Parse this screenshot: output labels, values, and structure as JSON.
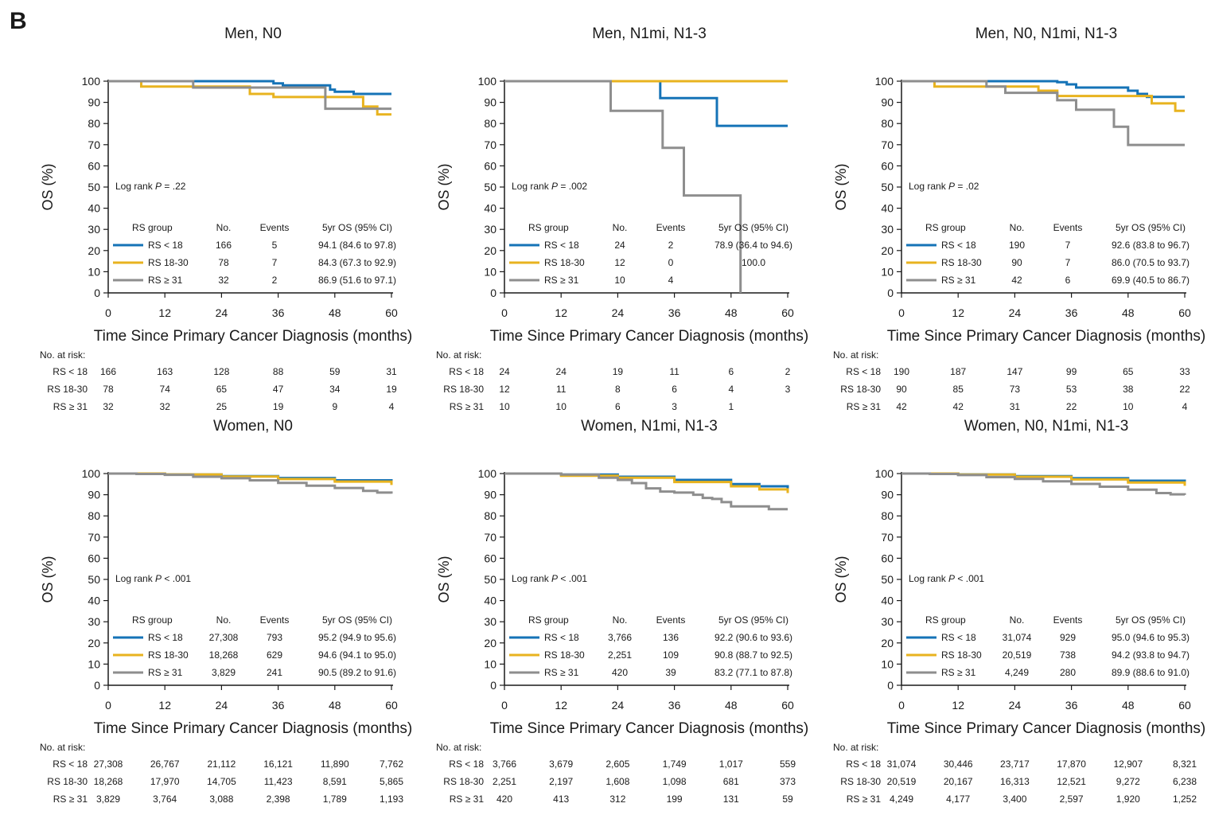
{
  "figure": {
    "panel_label": "B"
  },
  "colors": {
    "rs_lt18": "#1573b7",
    "rs_18_30": "#e8b31f",
    "rs_ge31": "#8e8e8e",
    "axis": "#1a1a1a"
  },
  "risk_header": "No. at risk:",
  "table_headers": {
    "group": "RS group",
    "no": "No.",
    "events": "Events",
    "os": "5yr OS (95% CI)"
  },
  "chart_data": [
    {
      "type": "line",
      "title": "Men, N0",
      "xlabel": "Time Since Primary Cancer Diagnosis (months)",
      "ylabel": "OS (%)",
      "xlim": [
        0,
        60
      ],
      "ylim": [
        0,
        100
      ],
      "xticks": [
        0,
        12,
        24,
        36,
        48,
        60
      ],
      "yticks": [
        0,
        10,
        20,
        30,
        40,
        50,
        60,
        70,
        80,
        90,
        100
      ],
      "logrank": {
        "prefix": "Log rank ",
        "p": "P",
        "value": " = .22"
      },
      "series": [
        {
          "name": "RS < 18",
          "no": "166",
          "events": "5",
          "os": "94.1 (84.6 to 97.8)",
          "x": [
            0,
            34,
            35,
            37,
            44,
            47,
            48,
            52,
            60
          ],
          "y": [
            100,
            100,
            99,
            98,
            98,
            96,
            95,
            94,
            94
          ],
          "at_risk": [
            "166",
            "163",
            "128",
            "88",
            "59",
            "31"
          ]
        },
        {
          "name": "RS 18-30",
          "no": "78",
          "events": "7",
          "os": "84.3 (67.3 to 92.9)",
          "x": [
            0,
            6,
            7,
            27,
            30,
            35,
            48,
            54,
            57,
            60
          ],
          "y": [
            100,
            100,
            97.5,
            97.5,
            94,
            92.5,
            92.5,
            88,
            84.3,
            84.3
          ],
          "at_risk": [
            "78",
            "74",
            "65",
            "47",
            "34",
            "19"
          ]
        },
        {
          "name": "RS ≥ 31",
          "no": "32",
          "events": "2",
          "os": "86.9 (51.6 to 97.1)",
          "x": [
            0,
            17,
            18,
            45,
            46,
            60
          ],
          "y": [
            100,
            100,
            97,
            97,
            87,
            87
          ],
          "at_risk": [
            "32",
            "32",
            "25",
            "19",
            "9",
            "4"
          ]
        }
      ]
    },
    {
      "type": "line",
      "title": "Men, N1mi, N1-3",
      "xlabel": "Time Since Primary Cancer Diagnosis (months)",
      "ylabel": "OS (%)",
      "xlim": [
        0,
        60
      ],
      "ylim": [
        0,
        100
      ],
      "xticks": [
        0,
        12,
        24,
        36,
        48,
        60
      ],
      "yticks": [
        0,
        10,
        20,
        30,
        40,
        50,
        60,
        70,
        80,
        90,
        100
      ],
      "logrank": {
        "prefix": "Log rank ",
        "p": "P",
        "value": " = .002"
      },
      "series": [
        {
          "name": "RS < 18",
          "no": "24",
          "events": "2",
          "os": "78.9 (36.4 to 94.6)",
          "x": [
            0,
            32,
            33,
            44,
            45,
            60
          ],
          "y": [
            100,
            100,
            92,
            92,
            78.9,
            78.9
          ],
          "at_risk": [
            "24",
            "24",
            "19",
            "11",
            "6",
            "2"
          ]
        },
        {
          "name": "RS 18-30",
          "no": "12",
          "events": "0",
          "os": "100.0",
          "x": [
            0,
            60
          ],
          "y": [
            100,
            100
          ],
          "at_risk": [
            "12",
            "11",
            "8",
            "6",
            "4",
            "3"
          ]
        },
        {
          "name": "RS ≥ 31",
          "no": "10",
          "events": "4",
          "os": "",
          "x": [
            0,
            22,
            22.5,
            33,
            33.5,
            37,
            38,
            49,
            50
          ],
          "y": [
            100,
            100,
            86,
            86,
            68.5,
            68.5,
            46,
            46,
            0
          ],
          "at_risk": [
            "10",
            "10",
            "6",
            "3",
            "1",
            ""
          ]
        }
      ]
    },
    {
      "type": "line",
      "title": "Men, N0, N1mi, N1-3",
      "xlabel": "Time Since Primary Cancer Diagnosis (months)",
      "ylabel": "OS (%)",
      "xlim": [
        0,
        60
      ],
      "ylim": [
        0,
        100
      ],
      "xticks": [
        0,
        12,
        24,
        36,
        48,
        60
      ],
      "yticks": [
        0,
        10,
        20,
        30,
        40,
        50,
        60,
        70,
        80,
        90,
        100
      ],
      "logrank": {
        "prefix": "Log rank ",
        "p": "P",
        "value": " = .02"
      },
      "series": [
        {
          "name": "RS < 18",
          "no": "190",
          "events": "7",
          "os": "92.6 (83.8 to 96.7)",
          "x": [
            0,
            32,
            33,
            35,
            37,
            44,
            48,
            50,
            52,
            60
          ],
          "y": [
            100,
            100,
            99.5,
            98.5,
            97,
            97,
            95.5,
            94,
            92.6,
            92.6
          ],
          "at_risk": [
            "190",
            "187",
            "147",
            "99",
            "65",
            "33"
          ]
        },
        {
          "name": "RS 18-30",
          "no": "90",
          "events": "7",
          "os": "86.0 (70.5 to 93.7)",
          "x": [
            0,
            6,
            7,
            27,
            29,
            33,
            52,
            53,
            57,
            58,
            60
          ],
          "y": [
            100,
            100,
            97.5,
            97.5,
            95.5,
            93,
            93,
            89.5,
            89.5,
            86,
            86
          ],
          "at_risk": [
            "90",
            "85",
            "73",
            "53",
            "38",
            "22"
          ]
        },
        {
          "name": "RS ≥ 31",
          "no": "42",
          "events": "6",
          "os": "69.9 (40.5 to 86.7)",
          "x": [
            0,
            17,
            18,
            21,
            22,
            32,
            33,
            36,
            37,
            44,
            45,
            47,
            48,
            60
          ],
          "y": [
            100,
            100,
            97.5,
            97.5,
            94.5,
            94.5,
            91,
            91,
            86.5,
            86.5,
            78.5,
            78.5,
            69.9,
            69.9
          ],
          "at_risk": [
            "42",
            "42",
            "31",
            "22",
            "10",
            "4"
          ]
        }
      ]
    },
    {
      "type": "line",
      "title": "Women, N0",
      "xlabel": "Time Since Primary Cancer Diagnosis (months)",
      "ylabel": "OS (%)",
      "xlim": [
        0,
        60
      ],
      "ylim": [
        0,
        100
      ],
      "xticks": [
        0,
        12,
        24,
        36,
        48,
        60
      ],
      "yticks": [
        0,
        10,
        20,
        30,
        40,
        50,
        60,
        70,
        80,
        90,
        100
      ],
      "logrank": {
        "prefix": "Log rank ",
        "p": "P",
        "value": " < .001"
      },
      "series": [
        {
          "name": "RS < 18",
          "no": "27,308",
          "events": "793",
          "os": "95.2 (94.9 to 95.6)",
          "x": [
            0,
            12,
            24,
            36,
            48,
            60
          ],
          "y": [
            100,
            99.6,
            98.8,
            97.9,
            96.8,
            95.2
          ],
          "at_risk": [
            "27,308",
            "26,767",
            "21,112",
            "16,121",
            "11,890",
            "7,762"
          ]
        },
        {
          "name": "RS 18-30",
          "no": "18,268",
          "events": "629",
          "os": "94.6 (94.1 to 95.0)",
          "x": [
            0,
            12,
            24,
            36,
            48,
            60
          ],
          "y": [
            100,
            99.6,
            98.6,
            97.4,
            96.2,
            94.6
          ],
          "at_risk": [
            "18,268",
            "17,970",
            "14,705",
            "11,423",
            "8,591",
            "5,865"
          ]
        },
        {
          "name": "RS ≥ 31",
          "no": "3,829",
          "events": "241",
          "os": "90.5 (89.2 to 91.6)",
          "x": [
            0,
            6,
            12,
            18,
            24,
            30,
            36,
            42,
            48,
            54,
            57,
            60
          ],
          "y": [
            100,
            99.8,
            99.4,
            98.5,
            97.8,
            96.8,
            95.6,
            94.3,
            93.2,
            91.8,
            91,
            90.5
          ],
          "at_risk": [
            "3,829",
            "3,764",
            "3,088",
            "2,398",
            "1,789",
            "1,193"
          ]
        }
      ]
    },
    {
      "type": "line",
      "title": "Women, N1mi, N1-3",
      "xlabel": "Time Since Primary Cancer Diagnosis (months)",
      "ylabel": "OS (%)",
      "xlim": [
        0,
        60
      ],
      "ylim": [
        0,
        100
      ],
      "xticks": [
        0,
        12,
        24,
        36,
        48,
        60
      ],
      "yticks": [
        0,
        10,
        20,
        30,
        40,
        50,
        60,
        70,
        80,
        90,
        100
      ],
      "logrank": {
        "prefix": "Log rank ",
        "p": "P",
        "value": " < .001"
      },
      "series": [
        {
          "name": "RS < 18",
          "no": "3,766",
          "events": "136",
          "os": "92.2 (90.6 to 93.6)",
          "x": [
            0,
            12,
            24,
            36,
            48,
            54,
            60
          ],
          "y": [
            100,
            99.5,
            98.5,
            97,
            95,
            94,
            92.2
          ],
          "at_risk": [
            "3,766",
            "3,679",
            "2,605",
            "1,749",
            "1,017",
            "559"
          ]
        },
        {
          "name": "RS 18-30",
          "no": "2,251",
          "events": "109",
          "os": "90.8 (88.7 to 92.5)",
          "x": [
            0,
            12,
            24,
            36,
            48,
            54,
            60
          ],
          "y": [
            100,
            99,
            98,
            96,
            94,
            92.5,
            90.8
          ],
          "at_risk": [
            "2,251",
            "2,197",
            "1,608",
            "1,098",
            "681",
            "373"
          ]
        },
        {
          "name": "RS ≥ 31",
          "no": "420",
          "events": "39",
          "os": "83.2 (77.1 to 87.8)",
          "x": [
            0,
            12,
            20,
            24,
            27,
            30,
            33,
            36,
            40,
            42,
            44,
            46,
            48,
            55,
            56,
            60
          ],
          "y": [
            100,
            99.5,
            98,
            97,
            95.5,
            93,
            91.5,
            91,
            90,
            88.5,
            88,
            86.5,
            84.5,
            84.5,
            83.2,
            83.2
          ],
          "at_risk": [
            "420",
            "413",
            "312",
            "199",
            "131",
            "59"
          ]
        }
      ]
    },
    {
      "type": "line",
      "title": "Women, N0, N1mi, N1-3",
      "xlabel": "Time Since Primary Cancer Diagnosis (months)",
      "ylabel": "OS (%)",
      "xlim": [
        0,
        60
      ],
      "ylim": [
        0,
        100
      ],
      "xticks": [
        0,
        12,
        24,
        36,
        48,
        60
      ],
      "yticks": [
        0,
        10,
        20,
        30,
        40,
        50,
        60,
        70,
        80,
        90,
        100
      ],
      "logrank": {
        "prefix": "Log rank ",
        "p": "P",
        "value": " < .001"
      },
      "series": [
        {
          "name": "RS < 18",
          "no": "31,074",
          "events": "929",
          "os": "95.0 (94.6 to 95.3)",
          "x": [
            0,
            12,
            24,
            36,
            48,
            60
          ],
          "y": [
            100,
            99.6,
            98.8,
            97.8,
            96.6,
            95.0
          ],
          "at_risk": [
            "31,074",
            "30,446",
            "23,717",
            "17,870",
            "12,907",
            "8,321"
          ]
        },
        {
          "name": "RS 18-30",
          "no": "20,519",
          "events": "738",
          "os": "94.2 (93.8 to 94.7)",
          "x": [
            0,
            12,
            24,
            36,
            48,
            60
          ],
          "y": [
            100,
            99.5,
            98.5,
            97.2,
            95.8,
            94.2
          ],
          "at_risk": [
            "20,519",
            "20,167",
            "16,313",
            "12,521",
            "9,272",
            "6,238"
          ]
        },
        {
          "name": "RS ≥ 31",
          "no": "4,249",
          "events": "280",
          "os": "89.9 (88.6 to 91.0)",
          "x": [
            0,
            6,
            12,
            18,
            24,
            30,
            36,
            42,
            48,
            54,
            57,
            60
          ],
          "y": [
            100,
            99.8,
            99.3,
            98.3,
            97.5,
            96.3,
            95.1,
            93.8,
            92.4,
            90.8,
            90.2,
            89.9
          ],
          "at_risk": [
            "4,249",
            "4,177",
            "3,400",
            "2,597",
            "1,920",
            "1,252"
          ]
        }
      ]
    }
  ]
}
